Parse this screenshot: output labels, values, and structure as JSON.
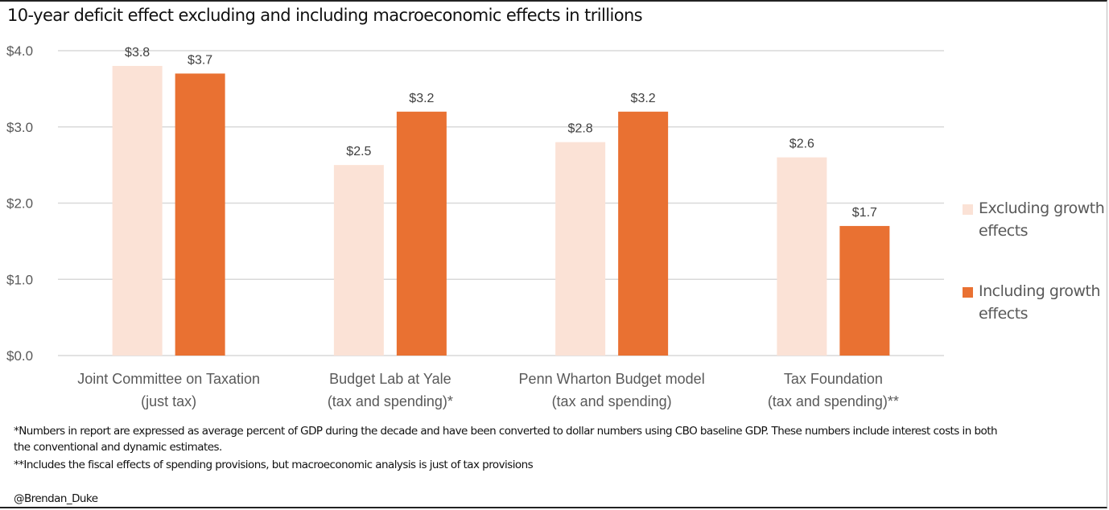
{
  "colors": {
    "excluding": "#FBE2D6",
    "including": "#E97132",
    "grid": "#D9D9D9"
  },
  "chart_data": {
    "type": "bar",
    "title": "10-year deficit effect excluding and including macroeconomic effects in trillions",
    "categories": [
      [
        "Joint Committee on Taxation",
        "(just tax)"
      ],
      [
        "Budget Lab at Yale",
        "(tax and spending)*"
      ],
      [
        "Penn Wharton Budget model",
        "(tax and spending)"
      ],
      [
        "Tax Foundation",
        "(tax and spending)**"
      ]
    ],
    "series": [
      {
        "name": "Excluding growth effects",
        "legend_lines": [
          "Excluding growth",
          "effects"
        ],
        "values": [
          3.8,
          2.5,
          2.8,
          2.6
        ],
        "labels": [
          "$3.8",
          "$2.5",
          "$2.8",
          "$2.6"
        ]
      },
      {
        "name": "Including growth effects",
        "legend_lines": [
          "Including growth",
          "effects"
        ],
        "values": [
          3.7,
          3.2,
          3.2,
          1.7
        ],
        "labels": [
          "$3.7",
          "$3.2",
          "$3.2",
          "$1.7"
        ]
      }
    ],
    "ylim": [
      0,
      4
    ],
    "yticks": [
      0,
      1,
      2,
      3,
      4
    ],
    "ytick_labels": [
      "$0.0",
      "$1.0",
      "$2.0",
      "$3.0",
      "$4.0"
    ],
    "xlabel": "",
    "ylabel": "",
    "grid": true,
    "legend_position": "right"
  },
  "footnotes": [
    "*Numbers in report are expressed as average percent of GDP during the decade and have been converted to dollar numbers using CBO baseline GDP. These numbers include interest costs in both",
    " the conventional and dynamic estimates.",
    "**Includes the fiscal effects of spending provisions, but macroeconomic analysis is just of tax provisions"
  ],
  "credit": "@Brendan_Duke"
}
